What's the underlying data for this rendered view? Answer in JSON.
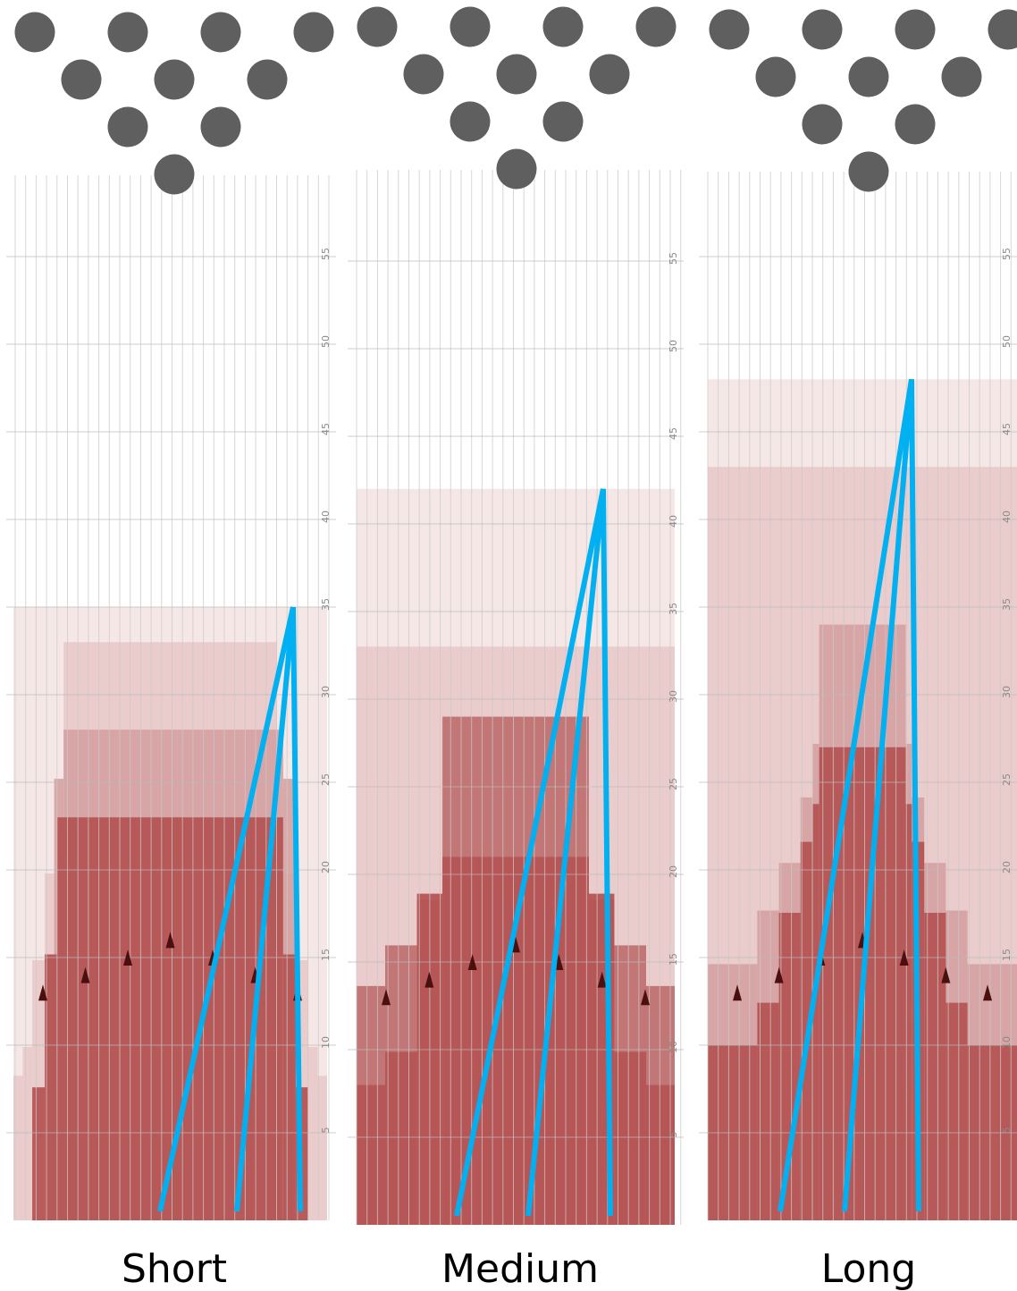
{
  "colors": {
    "pin": "#5f5f5f",
    "grid": "#c9c9c9",
    "grid_major": "#b9b9b9",
    "tick_text": "#8a8a8a",
    "layer_palest": "#f4e3e3",
    "layer_pale": "#e9c6c6",
    "layer_mid": "#d49e9e",
    "layer_dark": "#be6d6d",
    "layer_core": "#b65454",
    "marker": "#4a0f0f",
    "ray": "#00b0f0"
  },
  "icons": {
    "pin": "filled-circle",
    "marker": "filled-triangle"
  },
  "axis": {
    "tick_labels": [
      "5",
      "10",
      "15",
      "20",
      "25",
      "30",
      "35",
      "40",
      "45",
      "50",
      "55"
    ]
  },
  "panels": [
    {
      "label": "Short",
      "apex_height": 35,
      "layers": [
        {
          "name": "palest",
          "height": 35
        },
        {
          "name": "pale",
          "height": 33
        },
        {
          "name": "mid",
          "height": 28
        },
        {
          "name": "core",
          "height": 23
        }
      ],
      "marker_heights": [
        13,
        14,
        15,
        16,
        15,
        14,
        13
      ]
    },
    {
      "label": "Medium",
      "apex_height": 42,
      "layers": [
        {
          "name": "palest",
          "height": 42
        },
        {
          "name": "pale",
          "height": 33
        },
        {
          "name": "dark",
          "height": 29
        },
        {
          "name": "core",
          "height": 21
        }
      ],
      "marker_heights": [
        13,
        14,
        15,
        16,
        15,
        14,
        13
      ]
    },
    {
      "label": "Long",
      "apex_height": 48,
      "layers": [
        {
          "name": "palest",
          "height": 48
        },
        {
          "name": "pale",
          "height": 43
        },
        {
          "name": "mid",
          "height": 34
        },
        {
          "name": "core",
          "height": 27
        }
      ],
      "marker_heights": [
        13,
        14,
        15,
        16,
        15,
        14,
        13
      ]
    }
  ]
}
